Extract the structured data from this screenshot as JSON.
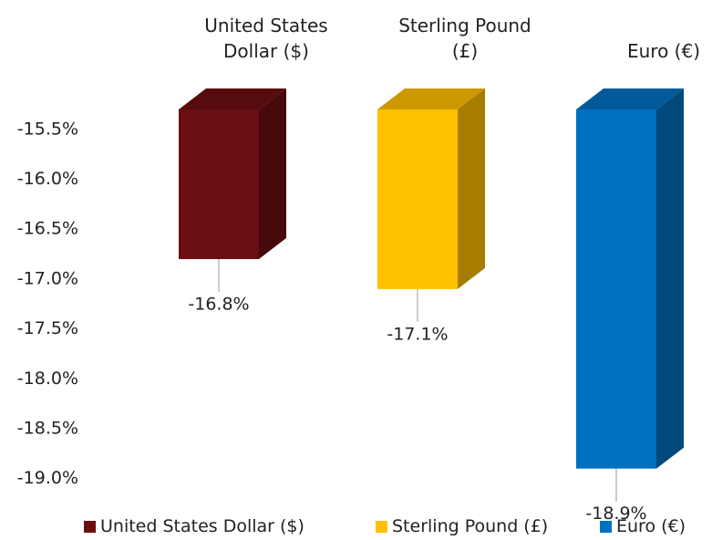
{
  "chart_data": {
    "type": "bar3d",
    "categories": [
      "United States Dollar ($)",
      "Sterling Pound (£)",
      "Euro (€)"
    ],
    "values": [
      -16.8,
      -17.1,
      -18.9
    ],
    "value_labels": [
      "-16.8%",
      "-17.1%",
      "-18.9%"
    ],
    "colors": [
      "#6b0e12",
      "#ffc000",
      "#0070c0"
    ],
    "ylim": [
      -15.3,
      -19.25
    ],
    "yticks": [
      {
        "value": -15.5,
        "label": "-15.5%"
      },
      {
        "value": -16.0,
        "label": "-16.0%"
      },
      {
        "value": -16.5,
        "label": "-16.5%"
      },
      {
        "value": -17.0,
        "label": "-17.0%"
      },
      {
        "value": -17.5,
        "label": "-17.5%"
      },
      {
        "value": -18.0,
        "label": "-18.0%"
      },
      {
        "value": -18.5,
        "label": "-18.5%"
      },
      {
        "value": -19.0,
        "label": "-19.0%"
      }
    ],
    "grid": false,
    "legend": "bottom"
  }
}
